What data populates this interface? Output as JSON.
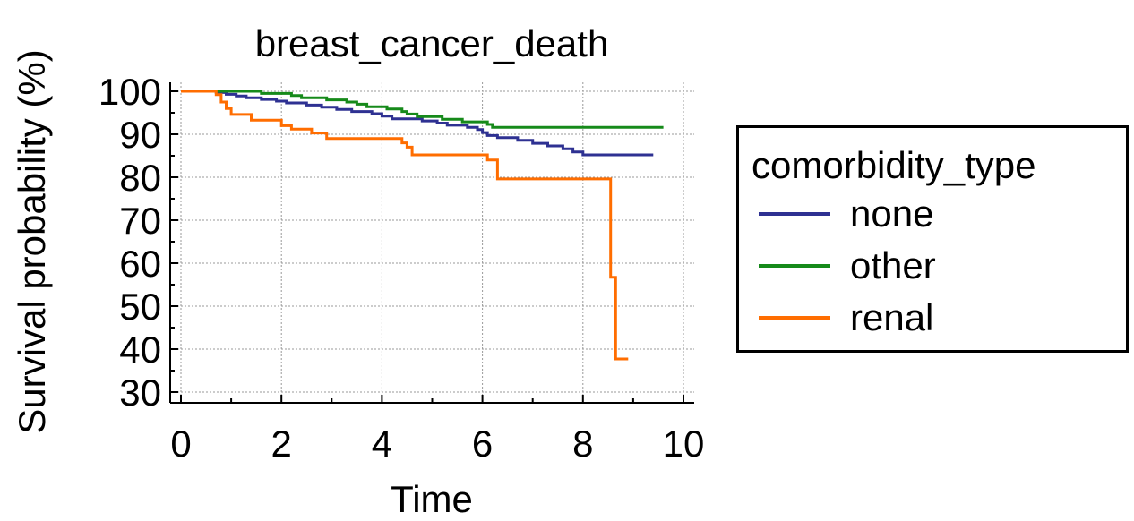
{
  "chart_data": {
    "type": "line",
    "subtype": "step",
    "title": "breast_cancer_death",
    "xlabel": "Time",
    "ylabel": "Survival probability (%)",
    "xlim": [
      0,
      10
    ],
    "ylim": [
      30,
      100
    ],
    "xticks": [
      0,
      2,
      4,
      6,
      8,
      10
    ],
    "yticks": [
      30,
      40,
      50,
      60,
      70,
      80,
      90,
      100
    ],
    "grid": true,
    "legend": {
      "title": "comorbidity_type",
      "placement": "right"
    },
    "series": [
      {
        "name": "none",
        "color": "#2e3192",
        "points": [
          [
            0,
            100
          ],
          [
            0.7,
            99.7
          ],
          [
            0.9,
            99.3
          ],
          [
            1.1,
            98.9
          ],
          [
            1.3,
            98.5
          ],
          [
            1.6,
            98.1
          ],
          [
            1.9,
            97.7
          ],
          [
            2.1,
            97.3
          ],
          [
            2.5,
            96.8
          ],
          [
            2.8,
            96.3
          ],
          [
            3.1,
            95.8
          ],
          [
            3.4,
            95.3
          ],
          [
            3.8,
            94.8
          ],
          [
            4.0,
            94.2
          ],
          [
            4.2,
            93.6
          ],
          [
            4.8,
            93.1
          ],
          [
            5.1,
            92.6
          ],
          [
            5.3,
            92.1
          ],
          [
            5.7,
            91.6
          ],
          [
            5.9,
            91.1
          ],
          [
            6.0,
            90.4
          ],
          [
            6.1,
            89.7
          ],
          [
            6.3,
            89.2
          ],
          [
            6.7,
            88.6
          ],
          [
            7.0,
            87.9
          ],
          [
            7.3,
            87.3
          ],
          [
            7.6,
            86.6
          ],
          [
            7.8,
            85.9
          ],
          [
            8.0,
            85.2
          ],
          [
            9.4,
            85.2
          ]
        ]
      },
      {
        "name": "other",
        "color": "#168a1a",
        "points": [
          [
            0,
            100
          ],
          [
            1.6,
            99.5
          ],
          [
            2.2,
            99.0
          ],
          [
            2.4,
            98.5
          ],
          [
            2.9,
            98.0
          ],
          [
            3.3,
            97.5
          ],
          [
            3.5,
            97.0
          ],
          [
            3.7,
            96.4
          ],
          [
            4.1,
            95.9
          ],
          [
            4.4,
            95.3
          ],
          [
            4.5,
            94.7
          ],
          [
            4.7,
            94.1
          ],
          [
            5.2,
            93.5
          ],
          [
            5.6,
            92.9
          ],
          [
            6.1,
            92.3
          ],
          [
            6.2,
            91.6
          ],
          [
            9.6,
            91.6
          ]
        ]
      },
      {
        "name": "renal",
        "color": "#ff6d00",
        "points": [
          [
            0,
            100
          ],
          [
            0.7,
            99.2
          ],
          [
            0.8,
            97.5
          ],
          [
            0.9,
            96.0
          ],
          [
            1.0,
            94.6
          ],
          [
            1.4,
            93.3
          ],
          [
            2.0,
            92.0
          ],
          [
            2.2,
            91.2
          ],
          [
            2.6,
            90.3
          ],
          [
            2.9,
            89.0
          ],
          [
            4.4,
            88.0
          ],
          [
            4.5,
            87.0
          ],
          [
            4.6,
            85.2
          ],
          [
            6.1,
            84.0
          ],
          [
            6.3,
            79.6
          ],
          [
            8.5,
            79.6
          ],
          [
            8.55,
            56.7
          ],
          [
            8.65,
            37.7
          ],
          [
            8.9,
            37.7
          ]
        ]
      }
    ]
  }
}
